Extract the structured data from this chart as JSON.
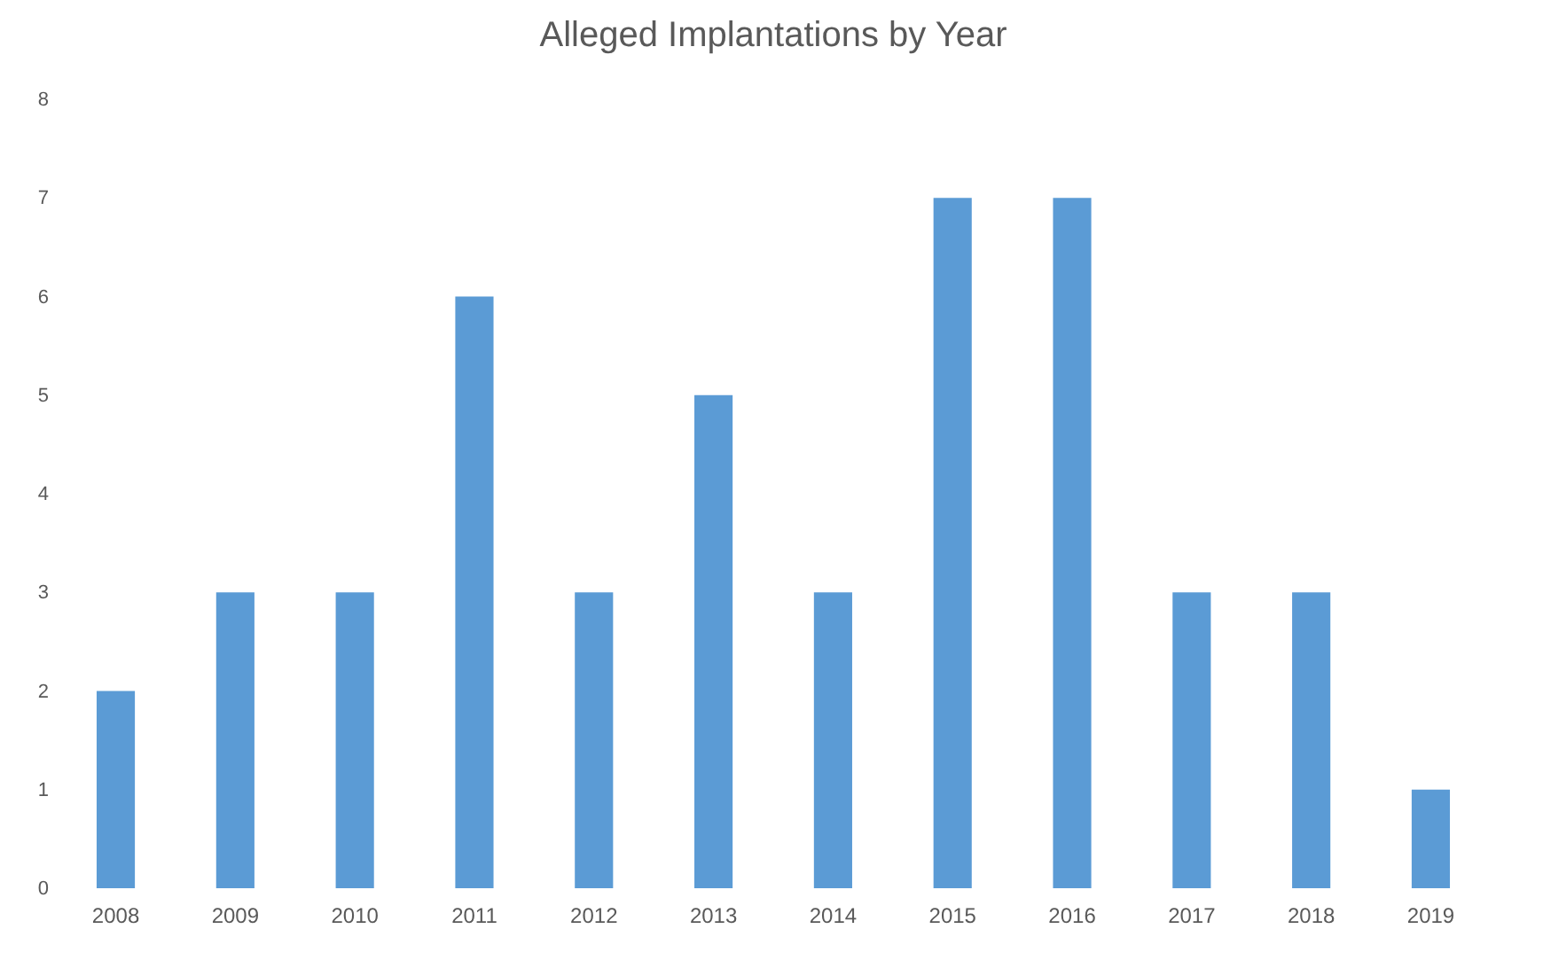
{
  "chart_data": {
    "type": "bar",
    "title": "Alleged Implantations by Year",
    "categories": [
      "2008",
      "2009",
      "2010",
      "2011",
      "2012",
      "2013",
      "2014",
      "2015",
      "2016",
      "2017",
      "2018",
      "2019"
    ],
    "values": [
      2,
      3,
      3,
      6,
      3,
      5,
      3,
      7,
      7,
      3,
      3,
      1
    ],
    "color": "#5b9bd5",
    "ylim": [
      0,
      8
    ],
    "yticks": [
      0,
      1,
      2,
      3,
      4,
      5,
      6,
      7,
      8
    ]
  }
}
